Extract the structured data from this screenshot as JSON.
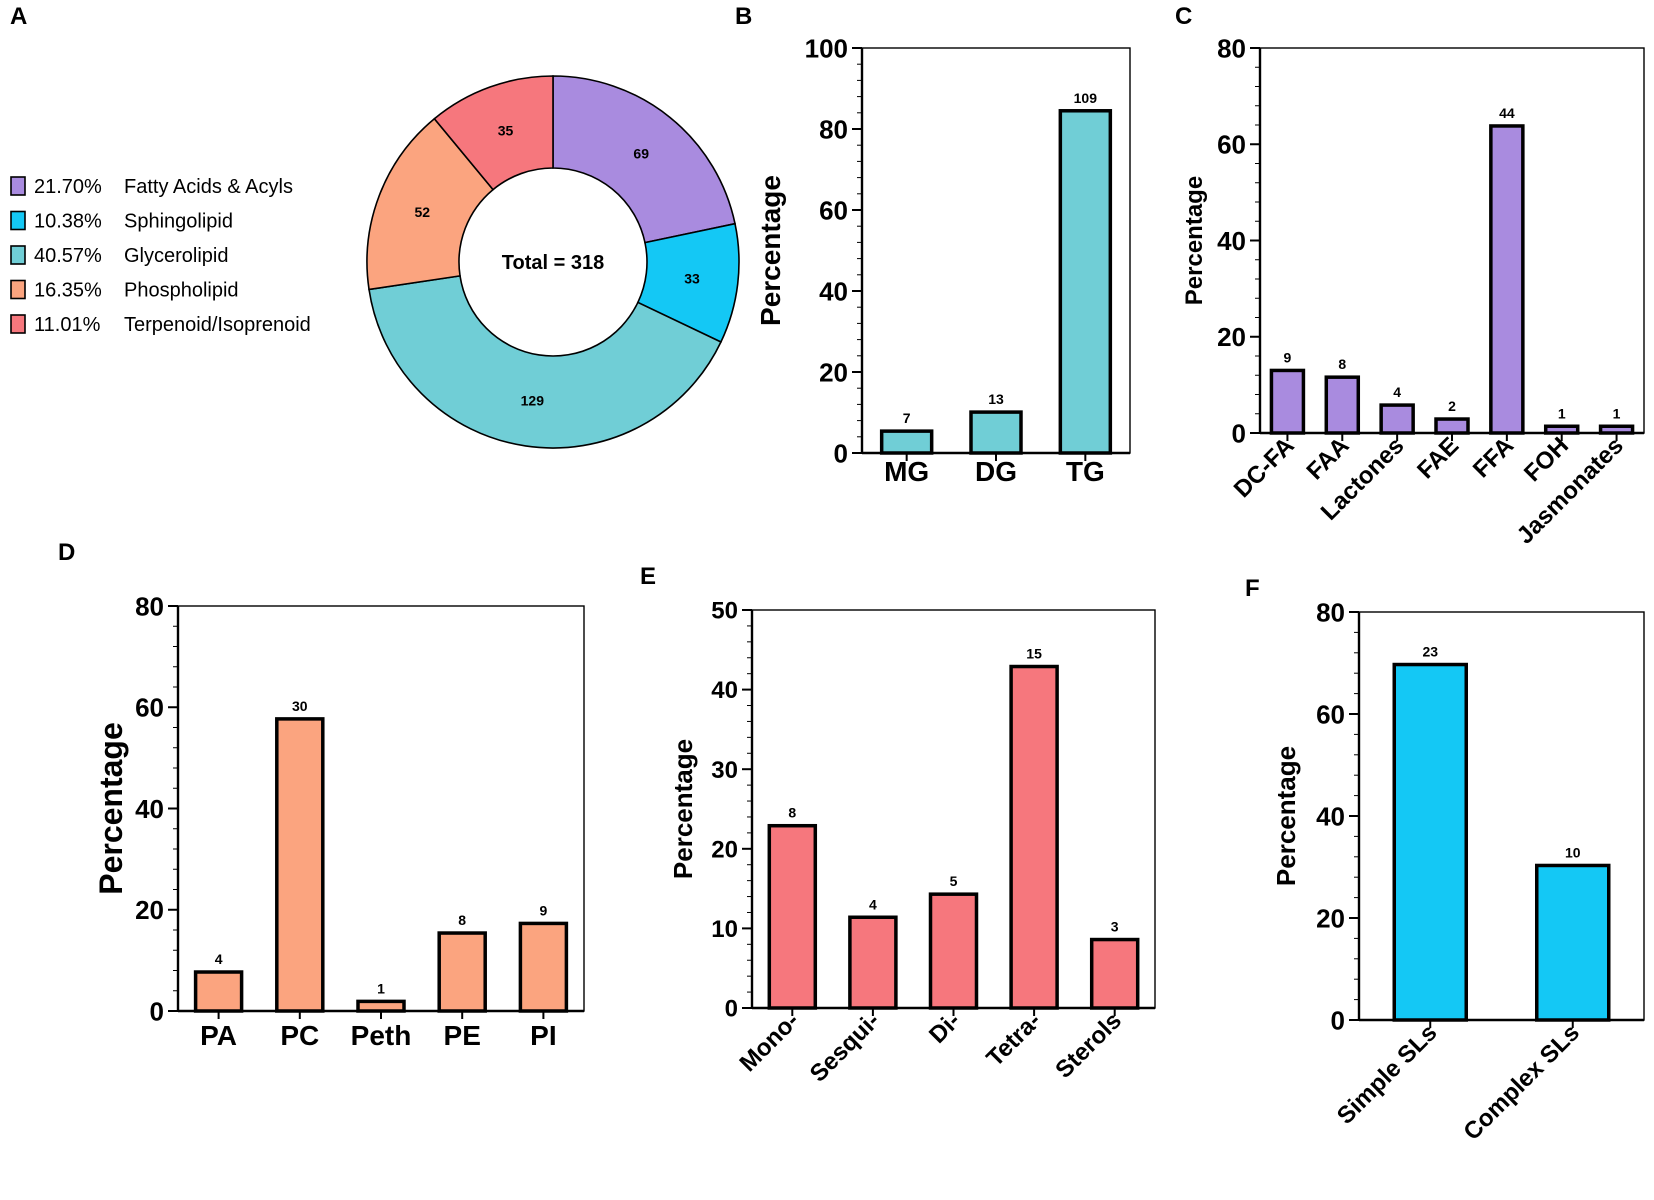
{
  "panels": [
    {
      "id": "A",
      "letter": "A"
    },
    {
      "id": "B",
      "letter": "B"
    },
    {
      "id": "C",
      "letter": "C"
    },
    {
      "id": "D",
      "letter": "D"
    },
    {
      "id": "E",
      "letter": "E"
    },
    {
      "id": "F",
      "letter": "F"
    }
  ],
  "chart_data": [
    {
      "id": "A",
      "type": "pie",
      "style": "donut",
      "center_label": "Total = 318",
      "slices": [
        {
          "name": "Fatty Acids & Acyls",
          "percent": "21.70%",
          "value": 69,
          "color": "#a98bdf"
        },
        {
          "name": "Sphingolipid",
          "percent": "10.38%",
          "value": 33,
          "color": "#14c8f5"
        },
        {
          "name": "Glycerolipid",
          "percent": "40.57%",
          "value": 129,
          "color": "#70ced6"
        },
        {
          "name": "Phospholipid",
          "percent": "16.35%",
          "value": 52,
          "color": "#fba47f"
        },
        {
          "name": "Terpenoid/Isoprenoid",
          "percent": "11.01%",
          "value": 35,
          "color": "#f6777d"
        }
      ]
    },
    {
      "id": "B",
      "type": "bar",
      "color": "#70ced6",
      "ylabel": "Percentage",
      "ylim": [
        0,
        100
      ],
      "yticks": [
        0,
        20,
        40,
        60,
        80,
        100
      ],
      "categories": [
        "MG",
        "DG",
        "TG"
      ],
      "values": [
        5.4,
        10.1,
        84.5
      ],
      "counts": [
        "7",
        "13",
        "109"
      ],
      "rotate_labels": false
    },
    {
      "id": "C",
      "type": "bar",
      "color": "#a98bdf",
      "ylabel": "Percentage",
      "ylim": [
        0,
        80
      ],
      "yticks": [
        0,
        20,
        40,
        60,
        80
      ],
      "categories": [
        "DC-FA",
        "FAA",
        "Lactones",
        "FAE",
        "FFA",
        "FOH",
        "Jasmonates"
      ],
      "values": [
        13.0,
        11.6,
        5.8,
        2.9,
        63.8,
        1.4,
        1.4
      ],
      "counts": [
        "9",
        "8",
        "4",
        "2",
        "44",
        "1",
        "1"
      ],
      "rotate_labels": true
    },
    {
      "id": "D",
      "type": "bar",
      "color": "#fba47f",
      "ylabel": "Percentage",
      "ylim": [
        0,
        80
      ],
      "yticks": [
        0,
        20,
        40,
        60,
        80
      ],
      "categories": [
        "PA",
        "PC",
        "Peth",
        "PE",
        "PI"
      ],
      "values": [
        7.7,
        57.7,
        1.9,
        15.4,
        17.3
      ],
      "counts": [
        "4",
        "30",
        "1",
        "8",
        "9"
      ],
      "rotate_labels": false
    },
    {
      "id": "E",
      "type": "bar",
      "color": "#f6777d",
      "ylabel": "Percentage",
      "ylim": [
        0,
        50
      ],
      "yticks": [
        0,
        10,
        20,
        30,
        40,
        50
      ],
      "categories": [
        "Mono-",
        "Sesqui-",
        "Di-",
        "Tetra-",
        "Sterols"
      ],
      "values": [
        22.9,
        11.4,
        14.3,
        42.9,
        8.6
      ],
      "counts": [
        "8",
        "4",
        "5",
        "15",
        "3"
      ],
      "rotate_labels": true
    },
    {
      "id": "F",
      "type": "bar",
      "color": "#14c8f5",
      "ylabel": "Percentage",
      "ylim": [
        0,
        80
      ],
      "yticks": [
        0,
        20,
        40,
        60,
        80
      ],
      "categories": [
        "Simple SLs",
        "Complex SLs"
      ],
      "values": [
        69.7,
        30.3
      ],
      "counts": [
        "23",
        "10"
      ],
      "rotate_labels": true
    }
  ]
}
